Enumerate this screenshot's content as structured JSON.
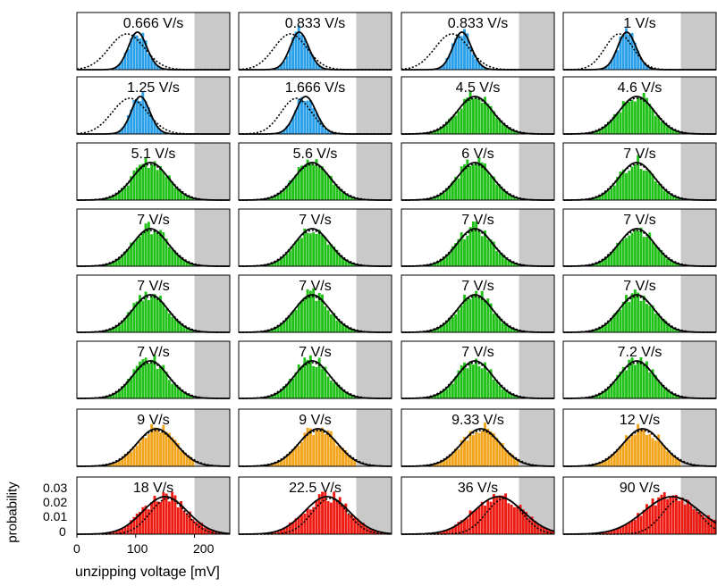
{
  "ylabel": "probability",
  "xlabel": "unzipping voltage [mV]",
  "yticks": [
    "0.03",
    "0.02",
    "0.01",
    "0"
  ],
  "xticks": [
    "0",
    "100",
    "200"
  ],
  "colors": {
    "blue": "#2aa0ea",
    "green": "#22c11a",
    "orange": "#f2a51a",
    "red": "#ee1b12",
    "shade": "#c9c9c9",
    "curve": "#000000"
  },
  "chart_data": {
    "type": "bar",
    "description_units": {
      "x": "mV",
      "y": "probability"
    },
    "xlim": [
      0,
      260
    ],
    "shade_from": 200,
    "panels": [
      {
        "label": "0.666 V/s",
        "color": "blue",
        "mean": 95,
        "sd": 18,
        "skew": -0.6,
        "dot_mean": 85,
        "dot_sd": 30
      },
      {
        "label": "0.833 V/s",
        "color": "blue",
        "mean": 95,
        "sd": 18,
        "skew": -0.6,
        "dot_mean": 88,
        "dot_sd": 28
      },
      {
        "label": "0.833 V/s",
        "color": "blue",
        "mean": 95,
        "sd": 18,
        "skew": -0.6,
        "dot_mean": 86,
        "dot_sd": 29
      },
      {
        "label": "1 V/s",
        "color": "blue",
        "mean": 100,
        "sd": 18,
        "skew": -0.6,
        "dot_mean": 95,
        "dot_sd": 24
      },
      {
        "label": "1.25 V/s",
        "color": "blue",
        "mean": 100,
        "sd": 18,
        "skew": -0.6,
        "dot_mean": 90,
        "dot_sd": 30
      },
      {
        "label": "1.666 V/s",
        "color": "blue",
        "mean": 105,
        "sd": 20,
        "skew": -0.6,
        "dot_mean": 98,
        "dot_sd": 26
      },
      {
        "label": "4.5 V/s",
        "color": "green",
        "mean": 125,
        "sd": 30,
        "skew": 0,
        "dot_mean": 125,
        "dot_sd": 32
      },
      {
        "label": "4.6 V/s",
        "color": "green",
        "mean": 125,
        "sd": 30,
        "skew": 0,
        "dot_mean": 125,
        "dot_sd": 32
      },
      {
        "label": "5.1 V/s",
        "color": "green",
        "mean": 125,
        "sd": 30,
        "skew": 0,
        "dot_mean": 125,
        "dot_sd": 32
      },
      {
        "label": "5.6 V/s",
        "color": "green",
        "mean": 125,
        "sd": 30,
        "skew": 0,
        "dot_mean": 125,
        "dot_sd": 32
      },
      {
        "label": "6 V/s",
        "color": "green",
        "mean": 125,
        "sd": 30,
        "skew": 0,
        "dot_mean": 125,
        "dot_sd": 32
      },
      {
        "label": "7 V/s",
        "color": "green",
        "mean": 125,
        "sd": 30,
        "skew": 0,
        "dot_mean": 125,
        "dot_sd": 32
      },
      {
        "label": "7 V/s",
        "color": "green",
        "mean": 125,
        "sd": 30,
        "skew": 0,
        "dot_mean": 125,
        "dot_sd": 32
      },
      {
        "label": "7 V/s",
        "color": "green",
        "mean": 125,
        "sd": 30,
        "skew": 0,
        "dot_mean": 125,
        "dot_sd": 32
      },
      {
        "label": "7 V/s",
        "color": "green",
        "mean": 125,
        "sd": 30,
        "skew": 0,
        "dot_mean": 125,
        "dot_sd": 32
      },
      {
        "label": "7 V/s",
        "color": "green",
        "mean": 125,
        "sd": 30,
        "skew": 0,
        "dot_mean": 125,
        "dot_sd": 32
      },
      {
        "label": "7 V/s",
        "color": "green",
        "mean": 125,
        "sd": 30,
        "skew": 0,
        "dot_mean": 125,
        "dot_sd": 32
      },
      {
        "label": "7 V/s",
        "color": "green",
        "mean": 125,
        "sd": 30,
        "skew": 0,
        "dot_mean": 125,
        "dot_sd": 32
      },
      {
        "label": "7 V/s",
        "color": "green",
        "mean": 125,
        "sd": 30,
        "skew": 0,
        "dot_mean": 125,
        "dot_sd": 32
      },
      {
        "label": "7 V/s",
        "color": "green",
        "mean": 125,
        "sd": 30,
        "skew": 0,
        "dot_mean": 125,
        "dot_sd": 32
      },
      {
        "label": "7 V/s",
        "color": "green",
        "mean": 125,
        "sd": 30,
        "skew": 0,
        "dot_mean": 125,
        "dot_sd": 32
      },
      {
        "label": "7 V/s",
        "color": "green",
        "mean": 125,
        "sd": 30,
        "skew": 0,
        "dot_mean": 125,
        "dot_sd": 32
      },
      {
        "label": "7 V/s",
        "color": "green",
        "mean": 125,
        "sd": 30,
        "skew": 0,
        "dot_mean": 125,
        "dot_sd": 32
      },
      {
        "label": "7.2 V/s",
        "color": "green",
        "mean": 125,
        "sd": 30,
        "skew": 0,
        "dot_mean": 125,
        "dot_sd": 32
      },
      {
        "label": "9 V/s",
        "color": "orange",
        "mean": 135,
        "sd": 33,
        "skew": 0,
        "dot_mean": 135,
        "dot_sd": 35
      },
      {
        "label": "9 V/s",
        "color": "orange",
        "mean": 135,
        "sd": 33,
        "skew": 0,
        "dot_mean": 135,
        "dot_sd": 35
      },
      {
        "label": "9.33 V/s",
        "color": "orange",
        "mean": 135,
        "sd": 33,
        "skew": 0,
        "dot_mean": 135,
        "dot_sd": 35
      },
      {
        "label": "12 V/s",
        "color": "orange",
        "mean": 135,
        "sd": 33,
        "skew": 0,
        "dot_mean": 135,
        "dot_sd": 35
      },
      {
        "label": "18 V/s",
        "color": "red",
        "mean": 150,
        "sd": 38,
        "skew": 0,
        "dot_mean": 155,
        "dot_sd": 30
      },
      {
        "label": "22.5 V/s",
        "color": "red",
        "mean": 150,
        "sd": 38,
        "skew": 0,
        "dot_mean": 155,
        "dot_sd": 30
      },
      {
        "label": "36 V/s",
        "color": "red",
        "mean": 165,
        "sd": 42,
        "skew": 0,
        "dot_mean": 175,
        "dot_sd": 30
      },
      {
        "label": "90 V/s",
        "color": "red",
        "mean": 185,
        "sd": 48,
        "skew": 0,
        "dot_mean": 200,
        "dot_sd": 30
      }
    ]
  }
}
